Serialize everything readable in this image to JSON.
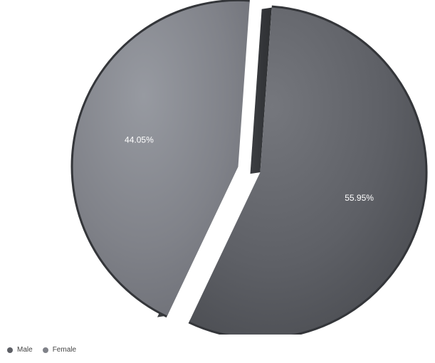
{
  "chart_data": {
    "type": "pie",
    "style": "3d-exploded",
    "slices": [
      {
        "name": "Male",
        "value": 55.95,
        "label": "55.95%",
        "color": "#5e6066"
      },
      {
        "name": "Female",
        "value": 44.05,
        "label": "44.05%",
        "color": "#808289"
      }
    ],
    "legend": {
      "position": "bottom-left",
      "items": [
        "Male",
        "Female"
      ]
    }
  }
}
